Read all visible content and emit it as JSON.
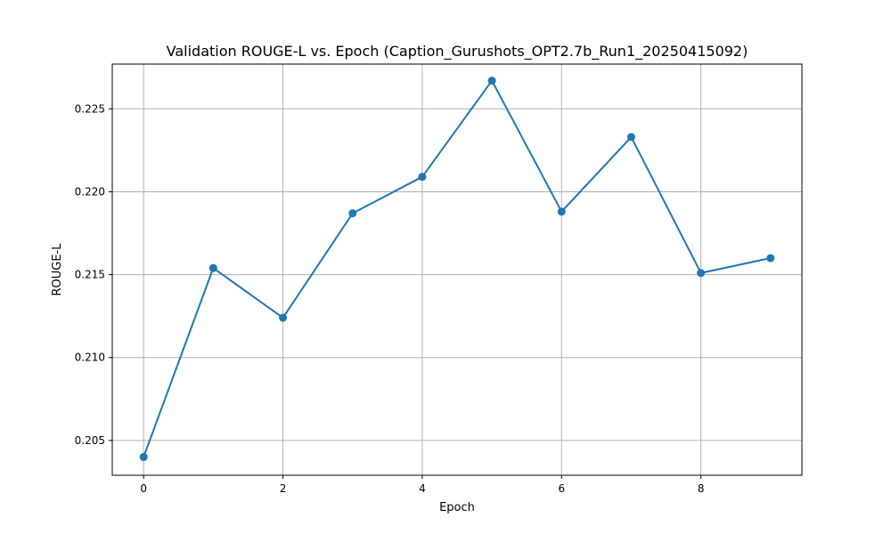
{
  "chart_data": {
    "type": "line",
    "title": "Validation ROUGE-L vs. Epoch (Caption_Gurushots_OPT2.7b_Run1_20250415092)",
    "xlabel": "Epoch",
    "ylabel": "ROUGE-L",
    "x": [
      0,
      1,
      2,
      3,
      4,
      5,
      6,
      7,
      8,
      9
    ],
    "series": [
      {
        "values": [
          0.204,
          0.2154,
          0.2124,
          0.2187,
          0.2209,
          0.2267,
          0.2188,
          0.2233,
          0.2151,
          0.216
        ],
        "color": "#1f77b4",
        "marker": "circle"
      }
    ],
    "xlim": [
      -0.45,
      9.45
    ],
    "ylim": [
      0.2029,
      0.2277
    ],
    "x_ticks": [
      0,
      2,
      4,
      6,
      8
    ],
    "x_tick_labels": [
      "0",
      "2",
      "4",
      "6",
      "8"
    ],
    "y_ticks": [
      0.205,
      0.21,
      0.215,
      0.22,
      0.225
    ],
    "y_tick_labels": [
      "0.205",
      "0.210",
      "0.215",
      "0.220",
      "0.225"
    ],
    "grid": true,
    "legend": "none"
  }
}
